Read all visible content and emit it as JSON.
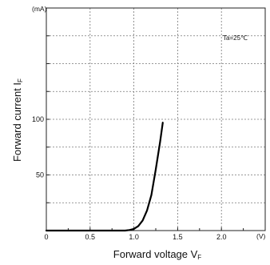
{
  "chart_data": {
    "type": "line",
    "xlabel": "Forward voltage V",
    "xlabel_sub": "F",
    "ylabel": "Forward current  I",
    "ylabel_sub": "F",
    "x_unit": "(V)",
    "y_unit": "(mA)",
    "annotation": "Ta=25℃",
    "xlim": [
      0,
      2.5
    ],
    "ylim": [
      0,
      200
    ],
    "x_ticks": [
      {
        "value": 0,
        "label": "0"
      },
      {
        "value": 0.5,
        "label": "0.5"
      },
      {
        "value": 1.0,
        "label": "1.0"
      },
      {
        "value": 1.5,
        "label": "1.5"
      },
      {
        "value": 2.0,
        "label": "2.0"
      }
    ],
    "y_ticks": [
      {
        "value": 50,
        "label": "50"
      },
      {
        "value": 100,
        "label": "100"
      }
    ],
    "x_minor_ticks": [
      0.25,
      0.75,
      1.25,
      1.75,
      2.25
    ],
    "grid": true,
    "series": [
      {
        "color": "#000000",
        "points": [
          [
            0,
            0
          ],
          [
            0.9,
            0
          ],
          [
            0.95,
            0.5
          ],
          [
            1.0,
            1.5
          ],
          [
            1.05,
            4
          ],
          [
            1.1,
            9
          ],
          [
            1.15,
            18
          ],
          [
            1.2,
            32
          ],
          [
            1.25,
            55
          ],
          [
            1.3,
            80
          ],
          [
            1.33,
            97
          ]
        ]
      }
    ]
  }
}
